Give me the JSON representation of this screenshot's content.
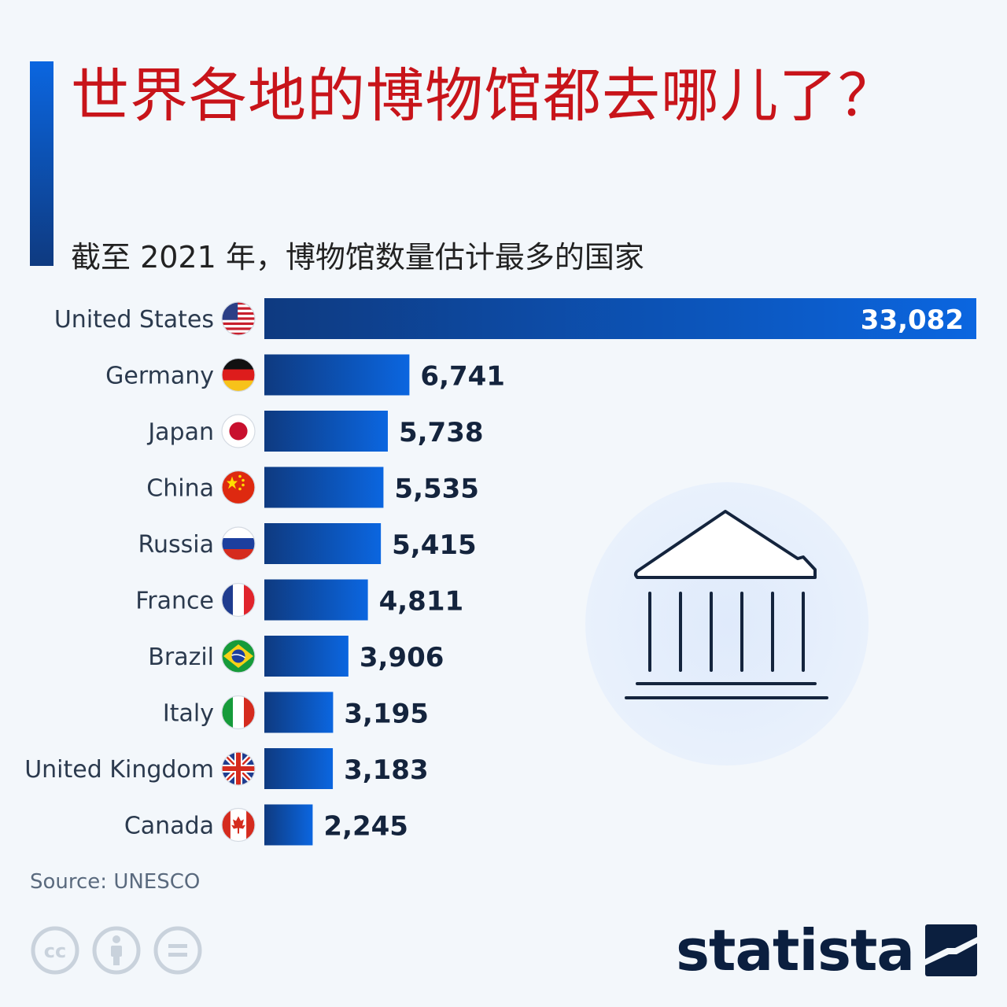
{
  "title": "世界各地的博物馆都去哪儿了？",
  "subtitle": "截至 2021 年，博物馆数量估计最多的国家",
  "source": "Source: UNESCO",
  "brand": "statista",
  "colors": {
    "title": "#c8141a",
    "bar_dark": "#0e3a80",
    "bar_light": "#0b66e0",
    "value_text": "#14243d"
  },
  "license_icons": [
    "cc-icon",
    "attribution-icon",
    "no-derivatives-icon"
  ],
  "chart_data": {
    "type": "bar",
    "orientation": "horizontal",
    "categories": [
      "United States",
      "Germany",
      "Japan",
      "China",
      "Russia",
      "France",
      "Brazil",
      "Italy",
      "United Kingdom",
      "Canada"
    ],
    "flags": [
      "us-flag-icon",
      "germany-flag-icon",
      "japan-flag-icon",
      "china-flag-icon",
      "russia-flag-icon",
      "france-flag-icon",
      "brazil-flag-icon",
      "italy-flag-icon",
      "uk-flag-icon",
      "canada-flag-icon"
    ],
    "values": [
      33082,
      6741,
      5738,
      5535,
      5415,
      4811,
      3906,
      3195,
      3183,
      2245
    ],
    "value_labels": [
      "33,082",
      "6,741",
      "5,738",
      "5,535",
      "5,415",
      "4,811",
      "3,906",
      "3,195",
      "3,183",
      "2,245"
    ],
    "xlim": [
      0,
      33082
    ],
    "grid": false,
    "legend": "none"
  }
}
